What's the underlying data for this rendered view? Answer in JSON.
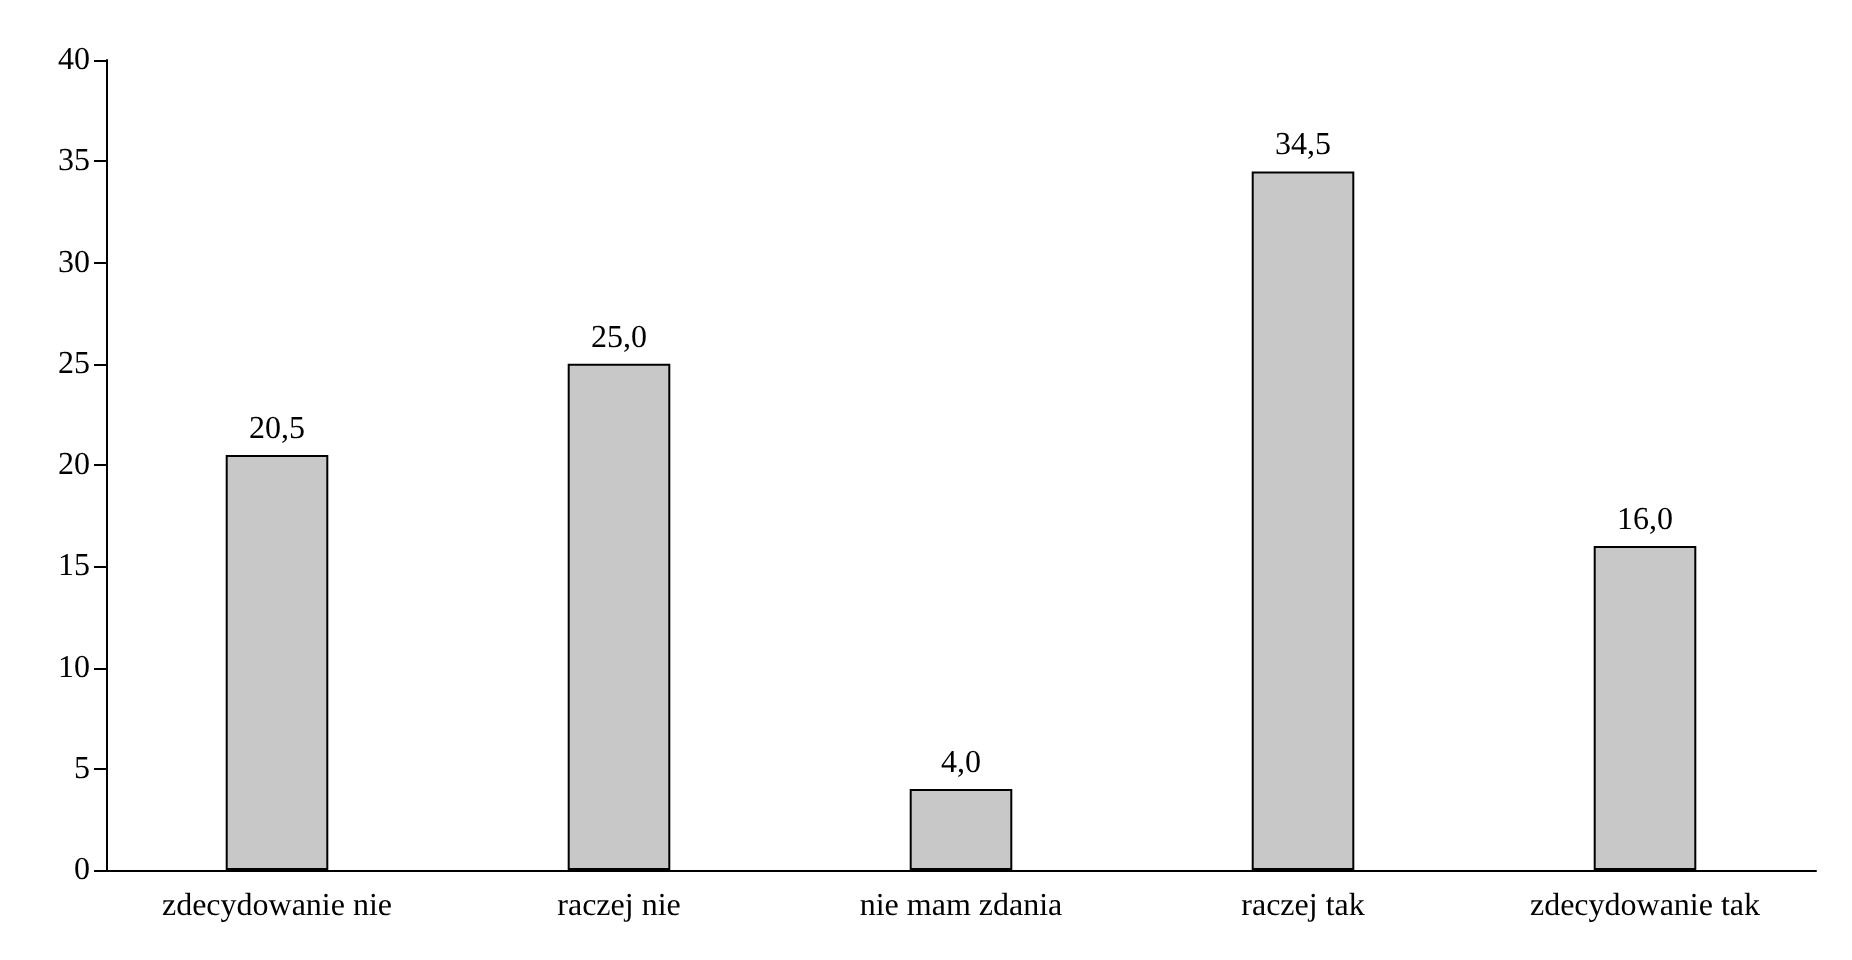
{
  "chart_data": {
    "type": "bar",
    "categories": [
      "zdecydowanie nie",
      "raczej nie",
      "nie mam zdania",
      "raczej tak",
      "zdecydowanie tak"
    ],
    "values": [
      20.5,
      25.0,
      4.0,
      34.5,
      16.0
    ],
    "value_labels": [
      "20,5",
      "25,0",
      "4,0",
      "34,5",
      "16,0"
    ],
    "color": "#c8c8c8",
    "ylim": [
      0,
      40
    ],
    "yticks": [
      0,
      5,
      10,
      15,
      20,
      25,
      30,
      35,
      40
    ],
    "grid": false
  }
}
